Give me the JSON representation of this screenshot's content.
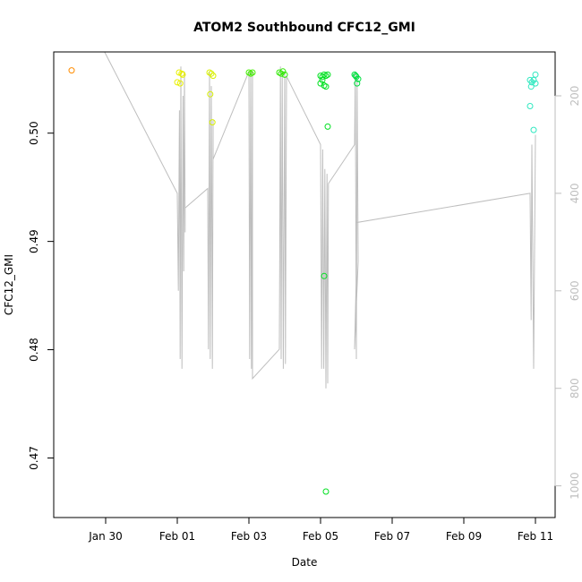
{
  "chart_data": {
    "type": "scatter",
    "title": "ATOM2 Southbound CFC12_GMI",
    "xlabel": "Date",
    "ylabel": "CFC12_GMI",
    "x_ticks": [
      "Jan 30",
      "Feb 01",
      "Feb 03",
      "Feb 05",
      "Feb 07",
      "Feb 09",
      "Feb 11"
    ],
    "x_tick_days": [
      0,
      2,
      4,
      6,
      8,
      10,
      12
    ],
    "xlim_days": [
      -1.45,
      12.55
    ],
    "ylim": [
      0.4645,
      0.5075
    ],
    "y_ticks": [
      0.47,
      0.48,
      0.49,
      0.5
    ],
    "y_tick_labels": [
      "0.47",
      "0.48",
      "0.49",
      "0.50"
    ],
    "right_axis": {
      "label": "",
      "ticks": [
        200,
        400,
        600,
        800,
        1000
      ],
      "tick_labels": [
        "200",
        "400",
        "600",
        "800",
        "1000"
      ],
      "lim": [
        1065,
        110
      ],
      "color": "#bebebe"
    },
    "points": [
      {
        "t": -0.95,
        "v": 0.5058,
        "c": "#ff8c00"
      },
      {
        "t": 2.05,
        "v": 0.5056,
        "c": "#e8f000"
      },
      {
        "t": 2.12,
        "v": 0.5055,
        "c": "#e8f000"
      },
      {
        "t": 2.0,
        "v": 0.5047,
        "c": "#e8f000"
      },
      {
        "t": 2.08,
        "v": 0.5046,
        "c": "#e8f000"
      },
      {
        "t": 2.15,
        "v": 0.5054,
        "c": "#e8f000"
      },
      {
        "t": 2.9,
        "v": 0.5056,
        "c": "#d8f000"
      },
      {
        "t": 2.95,
        "v": 0.5055,
        "c": "#d8f000"
      },
      {
        "t": 3.0,
        "v": 0.5053,
        "c": "#d8f000"
      },
      {
        "t": 2.92,
        "v": 0.5036,
        "c": "#d8f000"
      },
      {
        "t": 2.98,
        "v": 0.501,
        "c": "#d8f000"
      },
      {
        "t": 4.0,
        "v": 0.5056,
        "c": "#44ee00"
      },
      {
        "t": 4.05,
        "v": 0.5055,
        "c": "#44ee00"
      },
      {
        "t": 4.1,
        "v": 0.5056,
        "c": "#44ee00"
      },
      {
        "t": 4.85,
        "v": 0.5056,
        "c": "#2ee800"
      },
      {
        "t": 4.9,
        "v": 0.5055,
        "c": "#2ee800"
      },
      {
        "t": 4.95,
        "v": 0.5057,
        "c": "#2ee800"
      },
      {
        "t": 5.0,
        "v": 0.5054,
        "c": "#2ee800"
      },
      {
        "t": 6.0,
        "v": 0.5053,
        "c": "#00e020"
      },
      {
        "t": 6.05,
        "v": 0.5052,
        "c": "#00e020"
      },
      {
        "t": 6.1,
        "v": 0.5054,
        "c": "#00e020"
      },
      {
        "t": 6.15,
        "v": 0.5053,
        "c": "#00e020"
      },
      {
        "t": 6.2,
        "v": 0.5054,
        "c": "#00e020"
      },
      {
        "t": 6.05,
        "v": 0.5049,
        "c": "#00e020"
      },
      {
        "t": 6.1,
        "v": 0.5044,
        "c": "#00e020"
      },
      {
        "t": 6.15,
        "v": 0.5043,
        "c": "#00e020"
      },
      {
        "t": 6.0,
        "v": 0.5046,
        "c": "#00e020"
      },
      {
        "t": 6.2,
        "v": 0.5006,
        "c": "#00e020"
      },
      {
        "t": 6.1,
        "v": 0.4868,
        "c": "#00e020"
      },
      {
        "t": 6.15,
        "v": 0.4669,
        "c": "#00e020"
      },
      {
        "t": 6.95,
        "v": 0.5054,
        "c": "#00e040"
      },
      {
        "t": 7.0,
        "v": 0.5052,
        "c": "#00e040"
      },
      {
        "t": 7.05,
        "v": 0.505,
        "c": "#00e040"
      },
      {
        "t": 6.98,
        "v": 0.5053,
        "c": "#00e040"
      },
      {
        "t": 7.02,
        "v": 0.5046,
        "c": "#00e040"
      },
      {
        "t": 11.85,
        "v": 0.5049,
        "c": "#30e8c0"
      },
      {
        "t": 11.9,
        "v": 0.5047,
        "c": "#30e8c0"
      },
      {
        "t": 11.95,
        "v": 0.5049,
        "c": "#30e8c0"
      },
      {
        "t": 12.0,
        "v": 0.5054,
        "c": "#30e8c0"
      },
      {
        "t": 11.88,
        "v": 0.5043,
        "c": "#30e8c0"
      },
      {
        "t": 12.0,
        "v": 0.5046,
        "c": "#30e8c0"
      },
      {
        "t": 11.85,
        "v": 0.5025,
        "c": "#30e8c0"
      },
      {
        "t": 11.95,
        "v": 0.5003,
        "c": "#30e8c0"
      }
    ],
    "altitude_track": [
      {
        "t": -0.03,
        "p": 110
      },
      {
        "t": 2.0,
        "p": 400
      },
      {
        "t": 2.03,
        "p": 600
      },
      {
        "t": 2.06,
        "p": 230
      },
      {
        "t": 2.08,
        "p": 740
      },
      {
        "t": 2.1,
        "p": 140
      },
      {
        "t": 2.13,
        "p": 760
      },
      {
        "t": 2.16,
        "p": 200
      },
      {
        "t": 2.18,
        "p": 560
      },
      {
        "t": 2.2,
        "p": 150
      },
      {
        "t": 2.22,
        "p": 480
      },
      {
        "t": 2.22,
        "p": 430
      },
      {
        "t": 2.85,
        "p": 390
      },
      {
        "t": 2.87,
        "p": 720
      },
      {
        "t": 2.9,
        "p": 150
      },
      {
        "t": 2.92,
        "p": 740
      },
      {
        "t": 2.95,
        "p": 180
      },
      {
        "t": 2.98,
        "p": 760
      },
      {
        "t": 3.0,
        "p": 250
      },
      {
        "t": 3.0,
        "p": 330
      },
      {
        "t": 4.0,
        "p": 150
      },
      {
        "t": 4.02,
        "p": 740
      },
      {
        "t": 4.05,
        "p": 150
      },
      {
        "t": 4.07,
        "p": 760
      },
      {
        "t": 4.1,
        "p": 150
      },
      {
        "t": 4.1,
        "p": 780
      },
      {
        "t": 4.85,
        "p": 720
      },
      {
        "t": 4.88,
        "p": 140
      },
      {
        "t": 4.9,
        "p": 740
      },
      {
        "t": 4.93,
        "p": 150
      },
      {
        "t": 4.96,
        "p": 760
      },
      {
        "t": 5.0,
        "p": 150
      },
      {
        "t": 5.02,
        "p": 750
      },
      {
        "t": 5.05,
        "p": 160
      },
      {
        "t": 6.0,
        "p": 300
      },
      {
        "t": 6.03,
        "p": 760
      },
      {
        "t": 6.06,
        "p": 310
      },
      {
        "t": 6.09,
        "p": 760
      },
      {
        "t": 6.12,
        "p": 350
      },
      {
        "t": 6.15,
        "p": 800
      },
      {
        "t": 6.18,
        "p": 360
      },
      {
        "t": 6.2,
        "p": 790
      },
      {
        "t": 6.22,
        "p": 380
      },
      {
        "t": 6.95,
        "p": 300
      },
      {
        "t": 6.97,
        "p": 150
      },
      {
        "t": 7.0,
        "p": 740
      },
      {
        "t": 7.02,
        "p": 160
      },
      {
        "t": 7.05,
        "p": 540
      },
      {
        "t": 6.95,
        "p": 720
      },
      {
        "t": 7.0,
        "p": 560
      },
      {
        "t": 7.0,
        "p": 460
      },
      {
        "t": 11.85,
        "p": 400
      },
      {
        "t": 11.88,
        "p": 660
      },
      {
        "t": 11.9,
        "p": 300
      },
      {
        "t": 11.95,
        "p": 760
      },
      {
        "t": 12.0,
        "p": 280
      }
    ]
  }
}
